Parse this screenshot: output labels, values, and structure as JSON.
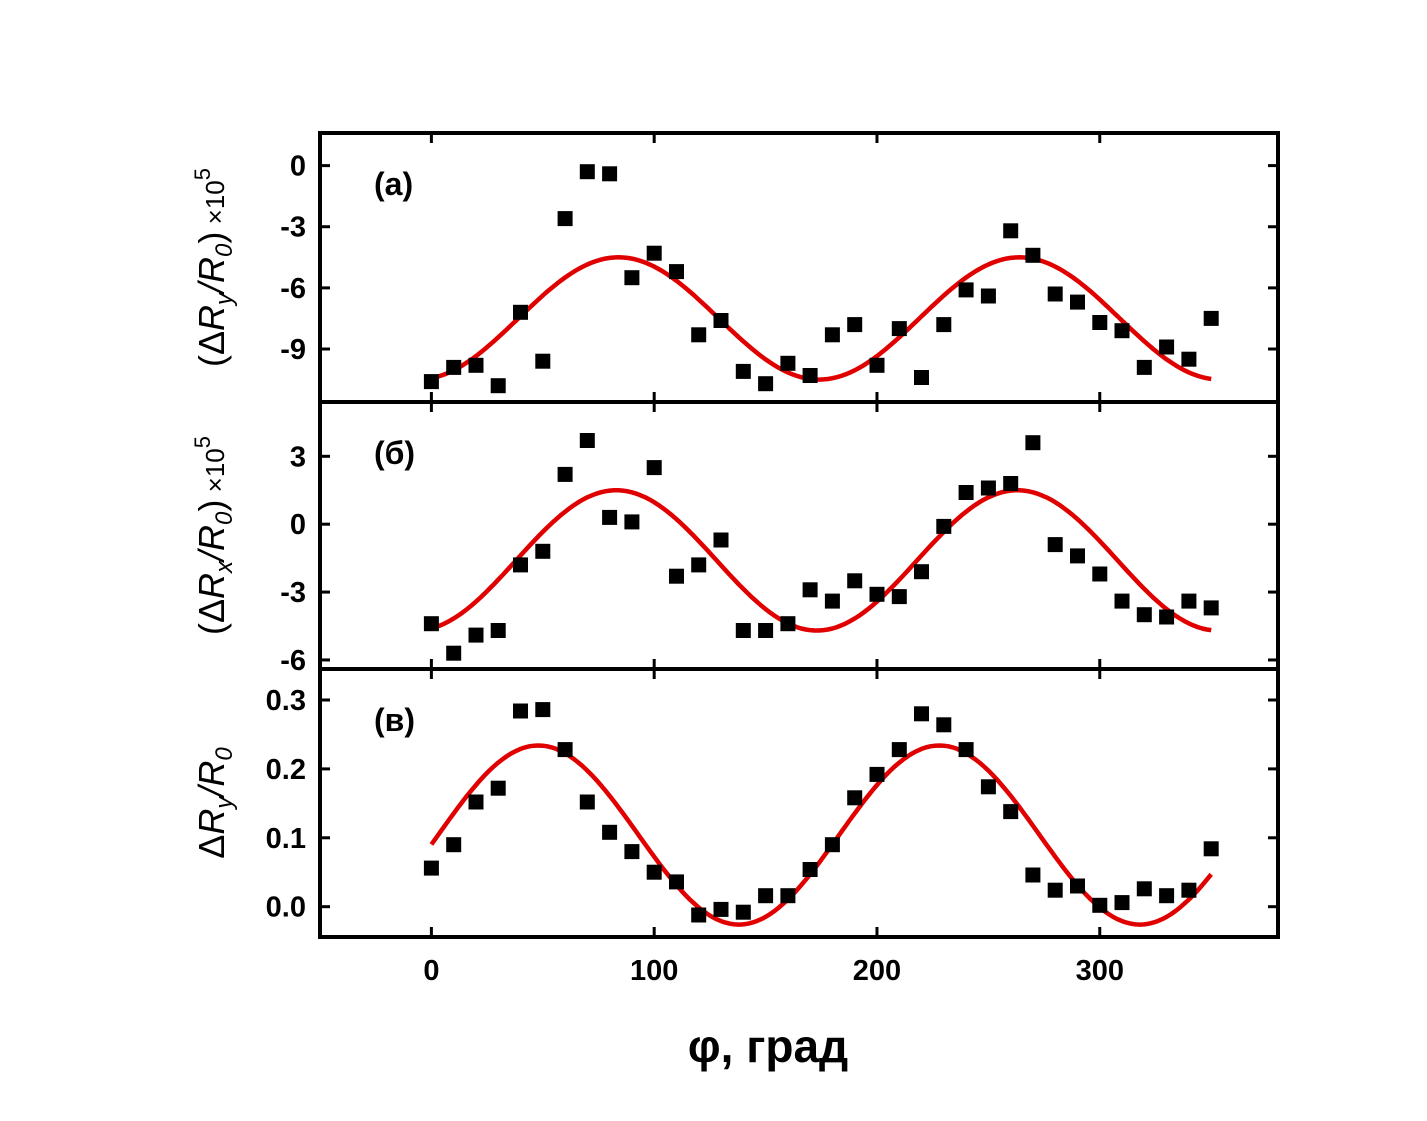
{
  "chart_data": [
    {
      "type": "scatter",
      "panel_label": "(а)",
      "ylabel": {
        "prefix": "(Δ",
        "var": "R",
        "var_sub": "y",
        "slash": "/",
        "den": "R",
        "den_sub": "0",
        "suffix": ")",
        "times": " ×10",
        "exp": "5"
      },
      "ylim": [
        -11.6,
        1.6
      ],
      "yticks": [
        0,
        -3,
        -6,
        -9
      ],
      "ytick_labels": [
        "0",
        "-3",
        "-6",
        "-9"
      ],
      "x": [
        0,
        10,
        20,
        30,
        40,
        50,
        60,
        70,
        80,
        90,
        100,
        110,
        120,
        130,
        140,
        150,
        160,
        170,
        180,
        190,
        200,
        210,
        220,
        230,
        240,
        250,
        260,
        270,
        280,
        290,
        300,
        310,
        320,
        330,
        340,
        350
      ],
      "series": [
        {
          "values": [
            -10.6,
            -9.9,
            -9.8,
            -10.8,
            -7.2,
            -9.6,
            -2.6,
            -0.3,
            -0.4,
            -5.5,
            -4.3,
            -5.2,
            -8.3,
            -7.6,
            -10.1,
            -10.7,
            -9.7,
            -10.3,
            -8.3,
            -7.8,
            -9.8,
            -8,
            -10.4,
            -7.8,
            -6.1,
            -6.4,
            -3.2,
            -4.4,
            -6.3,
            -6.7,
            -7.7,
            -8.1,
            -9.9,
            -8.9,
            -9.5,
            -7.5
          ]
        },
        {
          "fit": {
            "mean": -7.5,
            "amp": 3.0,
            "phase_deg": 84
          }
        }
      ],
      "grid": false
    },
    {
      "type": "scatter",
      "panel_label": "(б)",
      "ylabel": {
        "prefix": "(Δ",
        "var": "R",
        "var_sub": "x",
        "slash": "/",
        "den": "R",
        "den_sub": "0",
        "suffix": ")",
        "times": " ×10",
        "exp": "5"
      },
      "ylim": [
        -6.4,
        5.4
      ],
      "yticks": [
        3,
        0,
        -3,
        -6
      ],
      "ytick_labels": [
        "3",
        "0",
        "-3",
        "-6"
      ],
      "x": [
        0,
        10,
        20,
        30,
        40,
        50,
        60,
        70,
        80,
        90,
        100,
        110,
        120,
        130,
        140,
        150,
        160,
        170,
        180,
        190,
        200,
        210,
        220,
        230,
        240,
        250,
        260,
        270,
        280,
        290,
        300,
        310,
        320,
        330,
        340,
        350
      ],
      "series": [
        {
          "values": [
            -4.4,
            -5.7,
            -4.9,
            -4.7,
            -1.8,
            -1.2,
            2.2,
            3.7,
            0.3,
            0.1,
            2.5,
            -2.3,
            -1.8,
            -0.7,
            -4.7,
            -4.7,
            -4.4,
            -2.9,
            -3.4,
            -2.5,
            -3.1,
            -3.2,
            -2.1,
            -0.1,
            1.4,
            1.6,
            1.8,
            3.6,
            -0.9,
            -1.4,
            -2.2,
            -3.4,
            -4,
            -4.1,
            -3.4,
            -3.7
          ]
        },
        {
          "fit": {
            "mean": -1.6,
            "amp": 3.1,
            "phase_deg": 83
          }
        }
      ],
      "grid": false
    },
    {
      "type": "scatter",
      "panel_label": "(в)",
      "ylabel": {
        "prefix": "Δ",
        "var": "R",
        "var_sub": "y",
        "slash": "/",
        "den": "R",
        "den_sub": "0",
        "suffix": "",
        "times": "",
        "exp": ""
      },
      "ylim": [
        -0.044,
        0.345
      ],
      "yticks": [
        0.3,
        0.2,
        0.1,
        0.0
      ],
      "ytick_labels": [
        "0.3",
        "0.2",
        "0.1",
        "0.0"
      ],
      "x": [
        0,
        10,
        20,
        30,
        40,
        50,
        60,
        70,
        80,
        90,
        100,
        110,
        120,
        130,
        140,
        150,
        160,
        170,
        180,
        190,
        200,
        210,
        220,
        230,
        240,
        250,
        260,
        270,
        280,
        290,
        300,
        310,
        320,
        330,
        340,
        350
      ],
      "series": [
        {
          "values": [
            0.056,
            0.09,
            0.152,
            0.172,
            0.284,
            0.286,
            0.228,
            0.152,
            0.108,
            0.08,
            0.05,
            0.036,
            -0.012,
            -0.004,
            -0.008,
            0.016,
            0.016,
            0.054,
            0.09,
            0.158,
            0.192,
            0.228,
            0.28,
            0.264,
            0.228,
            0.174,
            0.138,
            0.046,
            0.024,
            0.03,
            0.002,
            0.006,
            0.026,
            0.016,
            0.024,
            0.084
          ]
        },
        {
          "fit": {
            "mean": 0.104,
            "amp": 0.13,
            "phase_deg": 48
          }
        }
      ],
      "grid": false
    }
  ],
  "x_axis": {
    "xlim": [
      -50,
      380
    ],
    "xticks": [
      0,
      100,
      200,
      300
    ],
    "xtick_labels": [
      "0",
      "100",
      "200",
      "300"
    ],
    "xlabel": "φ, град"
  },
  "colors": {
    "fit": "#e00000",
    "points": "#000000",
    "frame": "#000000"
  }
}
